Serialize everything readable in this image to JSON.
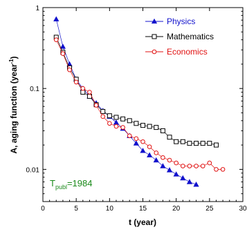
{
  "chart_data": {
    "type": "line",
    "xlabel": "t (year)",
    "ylabel_main": "A, aging function (year",
    "ylabel_sup": "-1",
    "ylabel_close": ")",
    "xlim": [
      0,
      30
    ],
    "ylim": [
      0.004,
      1
    ],
    "yscale": "log",
    "xticks": [
      0,
      5,
      10,
      15,
      20,
      25,
      30
    ],
    "yticks": [
      0.01,
      0.1,
      1
    ],
    "ytick_labels": [
      "0.01",
      "0.1",
      "1"
    ],
    "annotation": {
      "main": "T",
      "sub": "publ",
      "rest": "=1984",
      "color": "#1a8a1a"
    },
    "legend_position": "top-right",
    "series": [
      {
        "name": "Physics",
        "color": "#1010cc",
        "marker": "triangle-filled",
        "x": [
          2,
          3,
          4,
          5,
          6,
          7,
          8,
          9,
          10,
          11,
          12,
          13,
          14,
          15,
          16,
          17,
          18,
          19,
          20,
          21,
          22,
          23
        ],
        "y": [
          0.72,
          0.33,
          0.2,
          0.13,
          0.1,
          0.08,
          0.066,
          0.053,
          0.045,
          0.038,
          0.032,
          0.026,
          0.021,
          0.017,
          0.015,
          0.013,
          0.011,
          0.0098,
          0.0087,
          0.0078,
          0.007,
          0.0065
        ]
      },
      {
        "name": "Mathematics",
        "color": "#000000",
        "marker": "square-open",
        "x": [
          2,
          3,
          4,
          5,
          6,
          7,
          8,
          9,
          10,
          11,
          12,
          13,
          14,
          15,
          16,
          17,
          18,
          19,
          20,
          21,
          22,
          23,
          24,
          25,
          26
        ],
        "y": [
          0.43,
          0.28,
          0.18,
          0.13,
          0.09,
          0.08,
          0.063,
          0.052,
          0.046,
          0.044,
          0.042,
          0.04,
          0.037,
          0.035,
          0.034,
          0.033,
          0.03,
          0.025,
          0.022,
          0.022,
          0.021,
          0.021,
          0.021,
          0.021,
          0.02
        ]
      },
      {
        "name": "Economics",
        "color": "#e01010",
        "marker": "circle-open",
        "x": [
          2,
          3,
          4,
          5,
          6,
          7,
          8,
          9,
          10,
          11,
          12,
          13,
          14,
          15,
          16,
          17,
          18,
          19,
          20,
          21,
          22,
          23,
          24,
          25,
          26,
          27
        ],
        "y": [
          0.4,
          0.27,
          0.17,
          0.12,
          0.1,
          0.09,
          0.062,
          0.045,
          0.037,
          0.034,
          0.033,
          0.026,
          0.024,
          0.022,
          0.019,
          0.016,
          0.014,
          0.013,
          0.012,
          0.011,
          0.011,
          0.011,
          0.011,
          0.012,
          0.01,
          0.01
        ]
      }
    ]
  }
}
